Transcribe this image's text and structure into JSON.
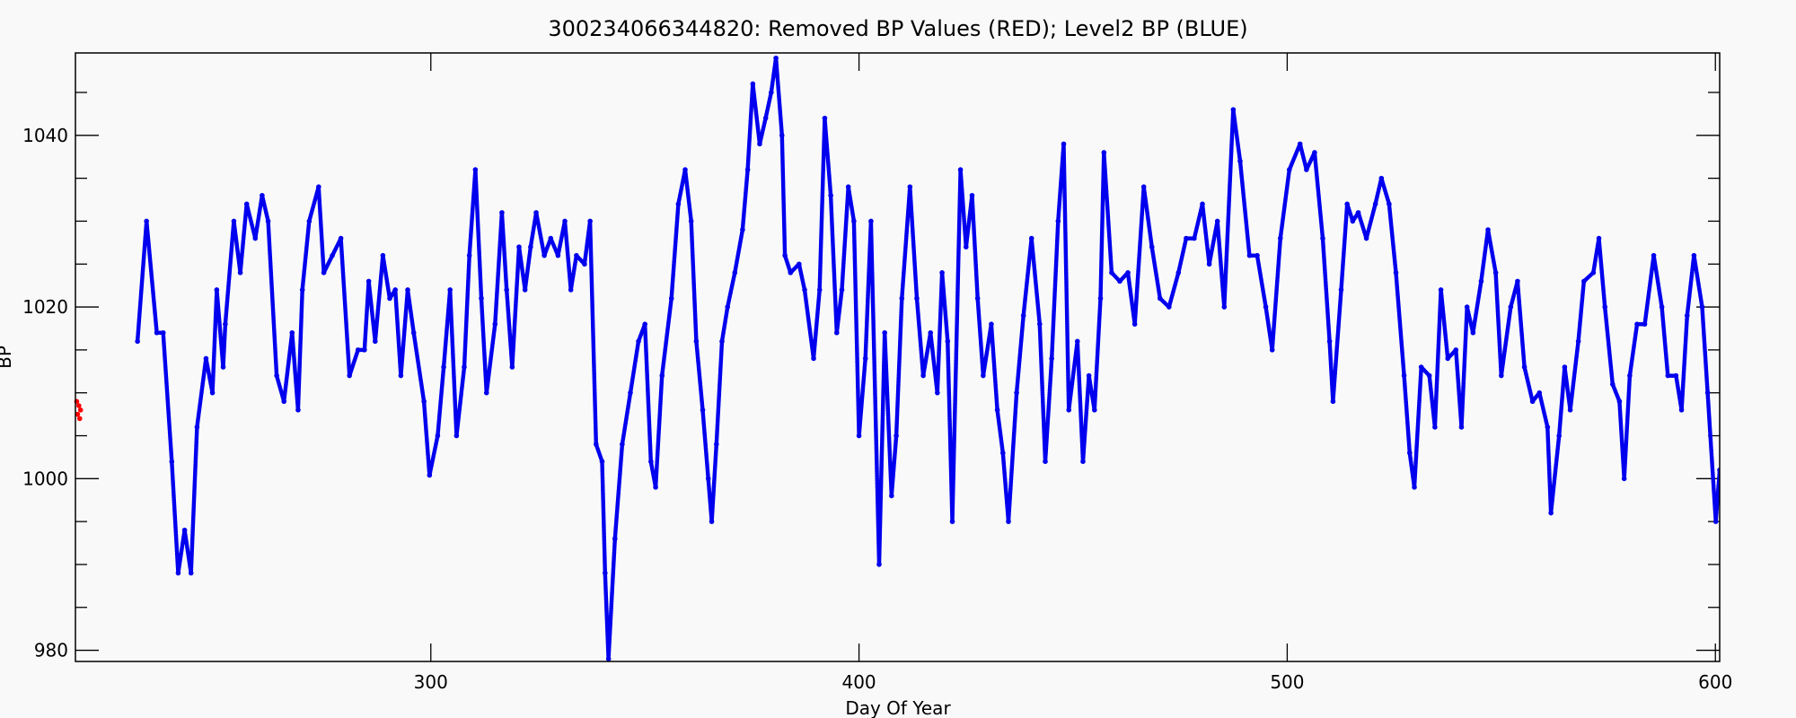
{
  "chart_data": {
    "type": "scatter",
    "title": "300234066344820: Removed BP Values (RED); Level2 BP (BLUE)",
    "x_label": "Day Of Year",
    "y_label": "BP",
    "xlim": [
      217,
      601
    ],
    "ylim": [
      978.7,
      1049.6
    ],
    "xticks": [
      300,
      400,
      500,
      600
    ],
    "yticks": [
      980,
      1000,
      1020,
      1040
    ],
    "yminorticks": [
      985,
      990,
      995,
      1005,
      1010,
      1015,
      1025,
      1030,
      1035,
      1045
    ],
    "series": [
      {
        "color": "#ff0000",
        "connect": false,
        "x": [
          217.3,
          217.5,
          217.8,
          218.0,
          218.2
        ],
        "values": [
          1009,
          1007.5,
          1008.5,
          1007,
          1008
        ]
      },
      {
        "color": "#0000ee",
        "connect": true,
        "x": [
          231.5,
          233.6,
          236,
          237.5,
          239.5,
          241,
          242.5,
          244,
          245.4,
          247.5,
          249,
          250,
          251.5,
          252,
          254,
          255.5,
          257,
          259,
          260.6,
          262,
          264,
          265.7,
          267.6,
          269,
          270,
          271.6,
          273.8,
          275,
          277,
          279,
          281,
          283,
          284.5,
          285.5,
          287,
          288.8,
          290.4,
          291.7,
          293,
          294.6,
          296,
          298.4,
          299.7,
          301.6,
          303,
          304.5,
          306,
          307.8,
          309,
          310.4,
          311.8,
          313,
          315,
          316.6,
          317.7,
          319,
          320.6,
          322,
          323.3,
          324.6,
          326.5,
          328,
          329.7,
          331.3,
          332.7,
          334,
          335.9,
          337.2,
          338.6,
          340,
          340.7,
          341.5,
          343,
          344.7,
          346.6,
          348.5,
          350,
          351.4,
          352.5,
          354,
          356.2,
          357.8,
          359.4,
          360.8,
          362,
          363.5,
          364.8,
          365.6,
          366.7,
          368,
          369.3,
          371,
          372.8,
          374,
          375.2,
          376.8,
          378.2,
          379.5,
          380.6,
          382,
          382.7,
          384,
          386,
          387.3,
          389.4,
          390.8,
          392,
          393.4,
          394.8,
          396,
          397.5,
          398.8,
          400,
          401.5,
          402.8,
          404.7,
          406,
          407.6,
          408.7,
          410,
          411.9,
          413.5,
          415,
          416.7,
          418.3,
          419.4,
          420.7,
          421.8,
          423.7,
          425,
          426.4,
          427.7,
          429,
          430.9,
          432.3,
          433.6,
          434.9,
          436.8,
          438.4,
          440.3,
          442.2,
          443.5,
          445,
          446.5,
          447.8,
          449,
          451,
          452.3,
          453.7,
          455,
          456.4,
          457.2,
          459,
          460.9,
          462.8,
          464.4,
          466.5,
          468.4,
          470.3,
          472.4,
          474.6,
          476.4,
          478.3,
          480.2,
          481.8,
          483.7,
          485.3,
          487.4,
          489,
          491.2,
          493,
          495,
          496.5,
          498.4,
          500.5,
          503,
          504.5,
          506.4,
          508.3,
          509.9,
          510.7,
          512.6,
          514,
          515.3,
          516.6,
          518.5,
          520.6,
          522,
          523.8,
          525.4,
          527.3,
          528.6,
          529.7,
          531.3,
          533.2,
          534.5,
          535.9,
          537.5,
          539.4,
          540.7,
          542,
          543.4,
          545.3,
          546.9,
          548.7,
          550,
          552.2,
          553.8,
          555.4,
          557.3,
          558.9,
          560.8,
          561.6,
          563.5,
          564.8,
          566.1,
          568,
          569.3,
          571.5,
          572.8,
          574.2,
          576,
          577.6,
          578.7,
          580,
          581.7,
          583.5,
          585.6,
          587.5,
          588.9,
          590.8,
          592.1,
          593.4,
          595,
          596.9,
          598.2,
          600.1,
          601
        ],
        "values": [
          1016,
          1030,
          1017,
          1017,
          1002,
          989,
          994,
          989,
          1006,
          1014,
          1010,
          1022,
          1013,
          1018,
          1030,
          1024,
          1032,
          1028,
          1033,
          1030,
          1012,
          1009,
          1017,
          1008,
          1022,
          1030,
          1034,
          1024,
          1026,
          1028,
          1012,
          1015,
          1015,
          1023,
          1016,
          1026,
          1021,
          1022,
          1012,
          1022,
          1017,
          1009,
          1000.4,
          1005,
          1013,
          1022,
          1005,
          1013,
          1026,
          1036,
          1021,
          1010,
          1018,
          1031,
          1022,
          1013,
          1027,
          1022,
          1027,
          1031,
          1026,
          1028,
          1026,
          1030,
          1022,
          1026,
          1025,
          1030,
          1004,
          1002,
          989,
          979,
          993,
          1004,
          1010,
          1016,
          1018,
          1002,
          999,
          1012,
          1021,
          1032,
          1036,
          1030,
          1016,
          1008,
          1000,
          995,
          1004,
          1016,
          1020,
          1024,
          1029,
          1036,
          1046,
          1039,
          1042,
          1045,
          1049,
          1040,
          1026,
          1024,
          1025,
          1022,
          1014,
          1022,
          1042,
          1033,
          1017,
          1022,
          1034,
          1030,
          1005,
          1014,
          1030,
          990,
          1017,
          998,
          1005,
          1021,
          1034,
          1021,
          1012,
          1017,
          1010,
          1024,
          1016,
          995,
          1036,
          1027,
          1033,
          1021,
          1012,
          1018,
          1008,
          1003,
          995,
          1010,
          1019,
          1028,
          1018,
          1002,
          1014,
          1030,
          1039,
          1008,
          1016,
          1002,
          1012,
          1008,
          1021,
          1038,
          1024,
          1023,
          1024,
          1018,
          1034,
          1027,
          1021,
          1020,
          1024,
          1028,
          1028,
          1032,
          1025,
          1030,
          1020,
          1043,
          1037,
          1026,
          1026,
          1020,
          1015,
          1028,
          1036,
          1039,
          1036,
          1038,
          1028,
          1016,
          1009,
          1022,
          1032,
          1030,
          1031,
          1028,
          1032,
          1035,
          1032,
          1024,
          1012,
          1003,
          999,
          1013,
          1012,
          1006,
          1022,
          1014,
          1015,
          1006,
          1020,
          1017,
          1023,
          1029,
          1024,
          1012,
          1020,
          1023,
          1013,
          1009,
          1010,
          1006,
          996,
          1005,
          1013,
          1008,
          1016,
          1023,
          1024,
          1028,
          1020,
          1011,
          1009,
          1000,
          1012,
          1018,
          1018,
          1026,
          1020,
          1012,
          1012,
          1008,
          1019,
          1026,
          1020,
          1010,
          995,
          1001
        ]
      }
    ]
  }
}
